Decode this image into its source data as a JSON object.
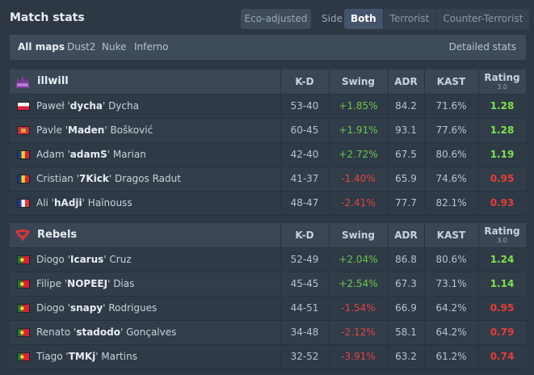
{
  "header": {
    "title": "Match stats",
    "eco_adjusted": "Eco-adjusted",
    "side_label": "Side",
    "side_options": [
      "Both",
      "Terrorist",
      "Counter-Terrorist"
    ],
    "side_selected": "Both"
  },
  "maps": {
    "items": [
      "All maps",
      "Dust2",
      "Nuke",
      "Inferno"
    ],
    "selected": "All maps",
    "detailed_stats": "Detailed stats"
  },
  "columns": {
    "kd": "K-D",
    "swing": "Swing",
    "adr": "ADR",
    "kast": "KAST",
    "rating": "Rating",
    "rating_version": "3.0"
  },
  "colors": {
    "positive": "#6cc34a",
    "negative": "#e0463e",
    "rating_good": "#7ee24a",
    "rating_bad": "#ea3b36"
  },
  "teams": [
    {
      "name": "illwill",
      "logo_icon": "illwill-logo-icon",
      "players": [
        {
          "first": "Paweł",
          "nick": "dycha",
          "last": "Dycha",
          "flag": "poland-flag-icon",
          "kd": "53-40",
          "swing": "+1.85%",
          "adr": "84.2",
          "kast": "71.6%",
          "rating": "1.28"
        },
        {
          "first": "Pavle",
          "nick": "Maden",
          "last": "Bošković",
          "flag": "montenegro-flag-icon",
          "kd": "60-45",
          "swing": "+1.91%",
          "adr": "93.1",
          "kast": "77.6%",
          "rating": "1.28"
        },
        {
          "first": "Adam",
          "nick": "adamS",
          "last": "Marian",
          "flag": "romania-flag-icon",
          "kd": "42-40",
          "swing": "+2.72%",
          "adr": "67.5",
          "kast": "80.6%",
          "rating": "1.19"
        },
        {
          "first": "Cristian",
          "nick": "7Kick",
          "last": "Dragos Radut",
          "flag": "romania-flag-icon",
          "kd": "41-37",
          "swing": "-1.40%",
          "adr": "65.9",
          "kast": "74.6%",
          "rating": "0.95"
        },
        {
          "first": "Ali",
          "nick": "hAdji",
          "last": "Haïnouss",
          "flag": "france-flag-icon",
          "kd": "48-47",
          "swing": "-2.41%",
          "adr": "77.7",
          "kast": "82.1%",
          "rating": "0.93"
        }
      ]
    },
    {
      "name": "Rebels",
      "logo_icon": "rebels-logo-icon",
      "players": [
        {
          "first": "Diogo",
          "nick": "Icarus",
          "last": "Cruz",
          "flag": "portugal-flag-icon",
          "kd": "52-49",
          "swing": "+2.04%",
          "adr": "86.8",
          "kast": "80.6%",
          "rating": "1.24"
        },
        {
          "first": "Filipe",
          "nick": "NOPEEJ",
          "last": "Dias",
          "flag": "portugal-flag-icon",
          "kd": "45-45",
          "swing": "+2.54%",
          "adr": "67.3",
          "kast": "73.1%",
          "rating": "1.14"
        },
        {
          "first": "Diogo",
          "nick": "snapy",
          "last": "Rodrigues",
          "flag": "portugal-flag-icon",
          "kd": "44-51",
          "swing": "-1.54%",
          "adr": "66.9",
          "kast": "64.2%",
          "rating": "0.95"
        },
        {
          "first": "Renato",
          "nick": "stadodo",
          "last": "Gonçalves",
          "flag": "portugal-flag-icon",
          "kd": "34-48",
          "swing": "-2.12%",
          "adr": "58.1",
          "kast": "64.2%",
          "rating": "0.79"
        },
        {
          "first": "Tiago",
          "nick": "TMKj",
          "last": "Martins",
          "flag": "portugal-flag-icon",
          "kd": "32-52",
          "swing": "-3.91%",
          "adr": "63.2",
          "kast": "61.2%",
          "rating": "0.74"
        }
      ]
    }
  ]
}
